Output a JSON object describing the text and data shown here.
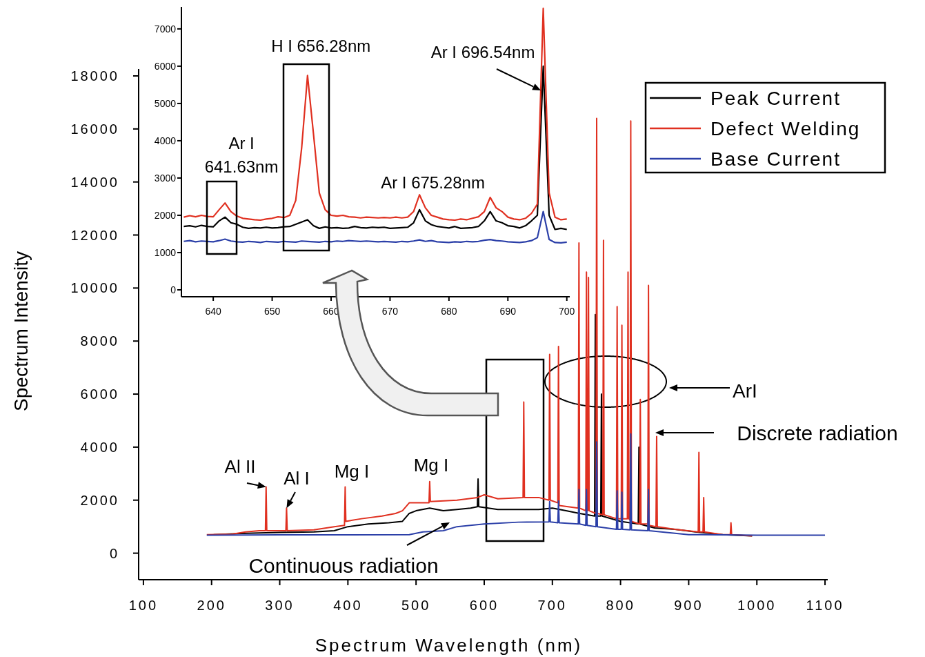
{
  "chart_data": [
    {
      "type": "line",
      "xlabel": "Spectrum Wavelength (nm)",
      "ylabel": "Spectrum Intensity",
      "xlim": [
        93,
        1104
      ],
      "ylim": [
        -1000,
        18260
      ],
      "xticks": [
        100,
        200,
        300,
        400,
        500,
        600,
        700,
        800,
        900,
        1000,
        1100
      ],
      "yticks": [
        0,
        2000,
        4000,
        6000,
        8000,
        10000,
        12000,
        14000,
        16000,
        18000
      ],
      "grid": false,
      "legend": "top right",
      "marker": "none",
      "line_style": "solid",
      "series": [
        {
          "name": "Peak Current",
          "color": "#000000",
          "x": [
            203,
            250,
            300,
            350,
            380,
            400,
            430,
            460,
            480,
            490,
            500,
            520,
            540,
            560,
            580,
            590,
            591,
            592,
            620,
            650,
            680,
            700,
            720,
            740,
            762,
            763,
            764,
            771,
            772,
            773,
            800,
            826,
            827,
            828,
            850,
            880,
            910,
            950,
            993
          ],
          "values": [
            700,
            750,
            780,
            800,
            850,
            1000,
            1100,
            1150,
            1200,
            1500,
            1600,
            1700,
            1600,
            1650,
            1700,
            1750,
            2800,
            1750,
            1650,
            1650,
            1650,
            1700,
            1600,
            1500,
            1400,
            9000,
            1400,
            1400,
            6000,
            1400,
            1200,
            1100,
            4000,
            1100,
            950,
            900,
            800,
            700,
            650
          ]
        },
        {
          "name": "Defect Welding",
          "color": "#e03020",
          "x": [
            193,
            230,
            250,
            270,
            279,
            280,
            281,
            300,
            309,
            310,
            311,
            350,
            380,
            395,
            396,
            397,
            420,
            450,
            470,
            480,
            490,
            519,
            520,
            521,
            560,
            590,
            600,
            620,
            657,
            658,
            659,
            680,
            695,
            696,
            697,
            708,
            709,
            710,
            738,
            739,
            740,
            749,
            750,
            751,
            752,
            753,
            754,
            764,
            765,
            766,
            774,
            775,
            776,
            794,
            795,
            796,
            801,
            802,
            803,
            810,
            811,
            812,
            814,
            815,
            816,
            828,
            829,
            830,
            840,
            841,
            842,
            852,
            853,
            854,
            880,
            914,
            915,
            916,
            921,
            922,
            923,
            950,
            961,
            962,
            963,
            993
          ],
          "values": [
            700,
            720,
            800,
            850,
            850,
            2500,
            850,
            850,
            850,
            1700,
            850,
            880,
            1000,
            1050,
            2500,
            1200,
            1300,
            1400,
            1500,
            1600,
            1900,
            1900,
            2700,
            1950,
            2000,
            2100,
            2200,
            2050,
            2100,
            5700,
            2100,
            2100,
            2000,
            7500,
            2000,
            1900,
            7800,
            1800,
            1700,
            11700,
            1700,
            1600,
            10600,
            1600,
            1600,
            10400,
            1600,
            1500,
            16400,
            1500,
            1450,
            11800,
            1450,
            1300,
            9300,
            1300,
            1300,
            8600,
            1300,
            1300,
            10600,
            1300,
            1250,
            16300,
            1200,
            1100,
            5800,
            1100,
            1100,
            10100,
            1050,
            1000,
            4400,
            1000,
            900,
            800,
            3800,
            800,
            800,
            2100,
            800,
            700,
            700,
            1150,
            700,
            650
          ]
        },
        {
          "name": "Base Current",
          "color": "#2b3fa8",
          "x": [
            193,
            300,
            400,
            490,
            510,
            540,
            560,
            600,
            650,
            695,
            696,
            697,
            708,
            709,
            710,
            738,
            739,
            740,
            749,
            750,
            751,
            764,
            765,
            766,
            794,
            795,
            796,
            801,
            802,
            803,
            814,
            815,
            816,
            840,
            841,
            842,
            880,
            900,
            1000,
            1100
          ],
          "values": [
            680,
            690,
            690,
            700,
            800,
            850,
            1000,
            1100,
            1170,
            1180,
            1950,
            1180,
            1150,
            1970,
            1150,
            1100,
            2400,
            1100,
            1050,
            2400,
            1050,
            1000,
            4200,
            1000,
            900,
            2350,
            900,
            900,
            2300,
            900,
            880,
            4500,
            880,
            850,
            2400,
            850,
            750,
            700,
            680,
            680
          ]
        }
      ],
      "annotations": [
        {
          "text": "Al II",
          "x": 280,
          "y": 2500
        },
        {
          "text": "Al I",
          "x": 310,
          "y": 1700
        },
        "Mg I",
        "Mg I",
        "Continuous radiation",
        "ArI",
        "Discrete radiation"
      ]
    },
    {
      "type": "line",
      "xlim": [
        634.6,
        700.5
      ],
      "ylim": [
        -185,
        7590
      ],
      "xticks": [
        640,
        650,
        660,
        670,
        680,
        690,
        700
      ],
      "yticks": [
        0,
        1000,
        2000,
        3000,
        4000,
        5000,
        6000,
        7000
      ],
      "grid": false,
      "marker": "none",
      "line_style": "solid",
      "x": [
        635,
        636,
        637,
        638,
        639,
        640,
        641,
        642,
        643,
        644,
        645,
        646,
        647,
        648,
        649,
        650,
        651,
        652,
        653,
        654,
        655,
        656,
        657,
        658,
        659,
        660,
        661,
        662,
        663,
        664,
        665,
        666,
        667,
        668,
        669,
        670,
        671,
        672,
        673,
        674,
        675,
        676,
        677,
        678,
        679,
        680,
        681,
        682,
        683,
        684,
        685,
        686,
        687,
        688,
        689,
        690,
        691,
        692,
        693,
        694,
        695,
        696,
        697,
        698,
        699,
        700
      ],
      "series": [
        {
          "color": "#000000",
          "values": [
            1700,
            1720,
            1690,
            1730,
            1700,
            1690,
            1850,
            1950,
            1800,
            1760,
            1680,
            1650,
            1670,
            1660,
            1680,
            1660,
            1670,
            1690,
            1700,
            1760,
            1820,
            1880,
            1720,
            1650,
            1690,
            1660,
            1670,
            1650,
            1660,
            1700,
            1670,
            1660,
            1680,
            1670,
            1680,
            1650,
            1660,
            1670,
            1680,
            1800,
            2150,
            1850,
            1750,
            1700,
            1680,
            1660,
            1700,
            1650,
            1660,
            1670,
            1700,
            1850,
            2100,
            1850,
            1800,
            1720,
            1700,
            1660,
            1720,
            1850,
            2000,
            6000,
            2000,
            1620,
            1650,
            1620
          ]
        },
        {
          "color": "#e03020",
          "values": [
            1950,
            1990,
            1960,
            2000,
            1970,
            1960,
            2150,
            2330,
            2100,
            1980,
            1920,
            1900,
            1880,
            1870,
            1900,
            1920,
            1960,
            1940,
            2000,
            2400,
            3800,
            5750,
            4200,
            2600,
            2150,
            2000,
            1980,
            2000,
            1960,
            1950,
            1930,
            1950,
            1940,
            1930,
            1940,
            1930,
            1950,
            1930,
            1950,
            2100,
            2550,
            2200,
            2000,
            1950,
            1900,
            1880,
            1870,
            1900,
            1880,
            1920,
            1960,
            2100,
            2480,
            2200,
            2100,
            1950,
            1900,
            1880,
            1920,
            2050,
            2300,
            7550,
            2600,
            1950,
            1880,
            1900
          ]
        },
        {
          "color": "#2b3fa8",
          "values": [
            1300,
            1320,
            1290,
            1310,
            1300,
            1290,
            1320,
            1360,
            1310,
            1290,
            1280,
            1300,
            1290,
            1270,
            1300,
            1290,
            1280,
            1300,
            1290,
            1280,
            1310,
            1300,
            1290,
            1280,
            1300,
            1290,
            1310,
            1300,
            1320,
            1310,
            1300,
            1310,
            1300,
            1290,
            1300,
            1290,
            1280,
            1300,
            1290,
            1310,
            1340,
            1300,
            1320,
            1290,
            1280,
            1270,
            1290,
            1280,
            1300,
            1290,
            1300,
            1330,
            1350,
            1320,
            1310,
            1290,
            1280,
            1270,
            1290,
            1320,
            1400,
            2100,
            1350,
            1270,
            1260,
            1280
          ]
        }
      ],
      "annotations": [
        {
          "text": "Ar I 641.63nm",
          "x": 641.63,
          "y": 2330
        },
        {
          "text": "H I 656.28nm",
          "x": 656.28,
          "y": 5750
        },
        {
          "text": "Ar I 675.28nm",
          "x": 675.28,
          "y": 2550
        },
        {
          "text": "Ar I 696.54nm",
          "x": 696.54,
          "y": 6000
        }
      ]
    }
  ]
}
